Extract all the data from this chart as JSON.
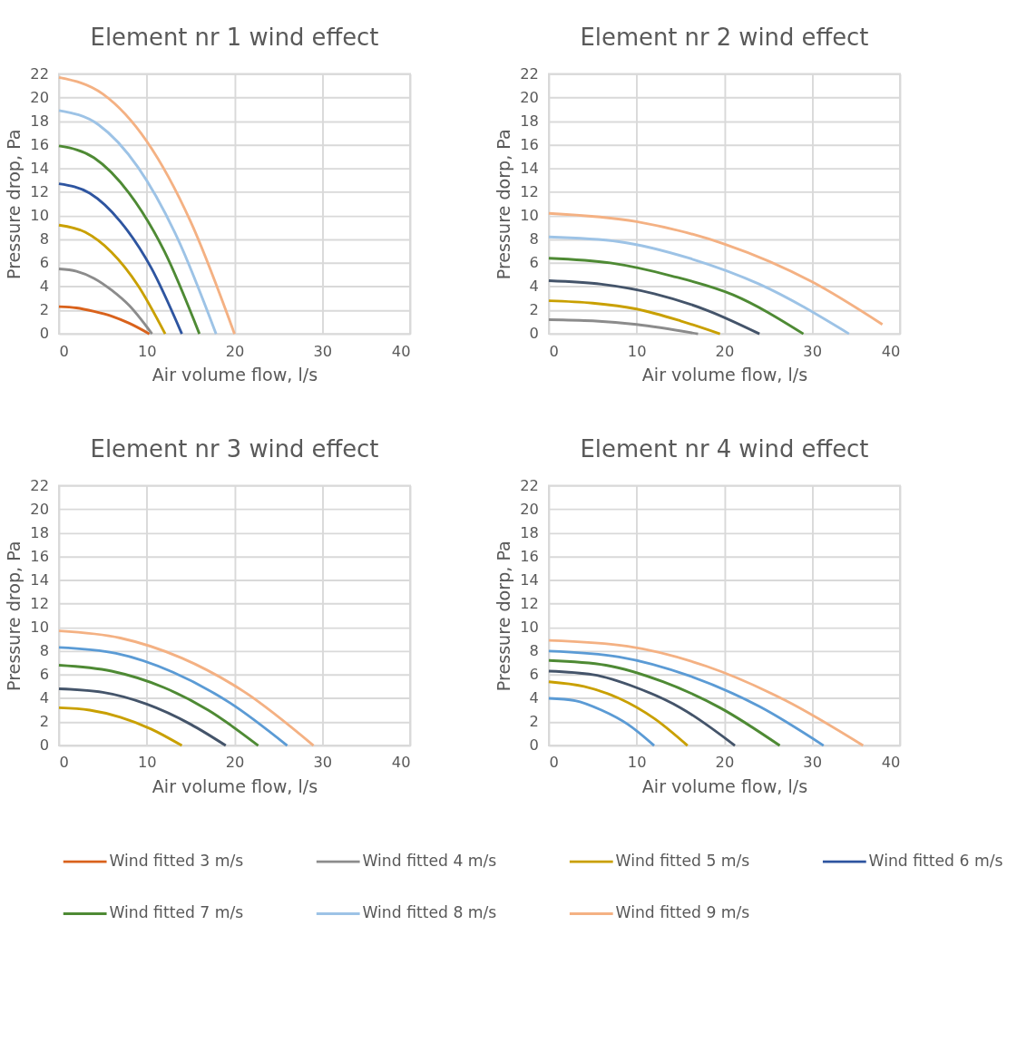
{
  "chart_data": [
    {
      "type": "line",
      "title": "Element nr 1 wind effect",
      "xlabel": "Air volume flow, l/s",
      "ylabel": "Pressure drop, Pa",
      "xlim": [
        0,
        40
      ],
      "xticks": [
        0,
        10,
        20,
        30,
        40
      ],
      "ylim": [
        0,
        22
      ],
      "yticks": [
        0,
        2,
        4,
        6,
        8,
        10,
        12,
        14,
        16,
        18,
        20,
        22
      ],
      "grid": true,
      "legend": "bottom",
      "series": [
        {
          "name": "Wind fitted 3 m/s",
          "color": "#d9621c",
          "x": [
            0,
            2,
            4,
            6,
            8,
            10.3
          ],
          "values": [
            2.3,
            2.2,
            1.9,
            1.5,
            0.9,
            0
          ]
        },
        {
          "name": "Wind fitted 4 m/s",
          "color": "#8c8c8c",
          "x": [
            0,
            2,
            4,
            6,
            8,
            10.6
          ],
          "values": [
            5.5,
            5.3,
            4.7,
            3.7,
            2.4,
            0
          ]
        },
        {
          "name": "Wind fitted 5 m/s",
          "color": "#c9a000",
          "x": [
            0,
            3,
            6,
            9,
            12.1
          ],
          "values": [
            9.2,
            8.6,
            6.9,
            4.1,
            0
          ]
        },
        {
          "name": "Wind fitted 6 m/s",
          "color": "#2e55a0",
          "x": [
            0,
            3.5,
            7,
            10.5,
            14
          ],
          "values": [
            12.7,
            11.9,
            9.5,
            5.6,
            0
          ]
        },
        {
          "name": "Wind fitted 7 m/s",
          "color": "#4e8a34",
          "x": [
            0,
            4,
            8,
            12,
            16
          ],
          "values": [
            15.9,
            14.9,
            11.9,
            7.0,
            0
          ]
        },
        {
          "name": "Wind fitted 8 m/s",
          "color": "#9dc3e6",
          "x": [
            0,
            4.5,
            9,
            13.5,
            17.9
          ],
          "values": [
            18.9,
            17.7,
            14.1,
            8.1,
            0
          ]
        },
        {
          "name": "Wind fitted 9 m/s",
          "color": "#f4b183",
          "x": [
            0,
            5,
            10,
            15,
            20
          ],
          "values": [
            21.7,
            20.3,
            16.3,
            9.5,
            0
          ]
        }
      ]
    },
    {
      "type": "line",
      "title": "Element nr 2 wind effect",
      "xlabel": "Air volume flow, l/s",
      "ylabel": "Pressure dorp, Pa",
      "xlim": [
        0,
        40
      ],
      "xticks": [
        0,
        10,
        20,
        30,
        40
      ],
      "ylim": [
        0,
        22
      ],
      "yticks": [
        0,
        2,
        4,
        6,
        8,
        10,
        12,
        14,
        16,
        18,
        20,
        22
      ],
      "grid": true,
      "series": [
        {
          "color": "#8c8c8c",
          "x": [
            0,
            5,
            10,
            17
          ],
          "values": [
            1.2,
            1.1,
            0.8,
            0
          ]
        },
        {
          "color": "#c9a000",
          "x": [
            0,
            5,
            10,
            15,
            19.5
          ],
          "values": [
            2.8,
            2.6,
            2.1,
            1.1,
            0
          ]
        },
        {
          "color": "#44546a",
          "x": [
            0,
            6,
            12,
            18,
            24
          ],
          "values": [
            4.5,
            4.2,
            3.4,
            2.0,
            0
          ]
        },
        {
          "color": "#4e8a34",
          "x": [
            0,
            7,
            14,
            21,
            29
          ],
          "values": [
            6.4,
            6.0,
            4.9,
            3.3,
            0
          ]
        },
        {
          "color": "#9dc3e6",
          "x": [
            0,
            8,
            16,
            24,
            34.2
          ],
          "values": [
            8.2,
            7.8,
            6.4,
            4.2,
            0
          ]
        },
        {
          "color": "#f4b183",
          "x": [
            0,
            10,
            20,
            30,
            38
          ],
          "values": [
            10.2,
            9.5,
            7.6,
            4.4,
            0.8
          ]
        }
      ]
    },
    {
      "type": "line",
      "title": "Element nr 3 wind effect",
      "xlabel": "Air volume flow, l/s",
      "ylabel": "Pressure drop, Pa",
      "xlim": [
        0,
        40
      ],
      "xticks": [
        0,
        10,
        20,
        30,
        40
      ],
      "ylim": [
        0,
        22
      ],
      "yticks": [
        0,
        2,
        4,
        6,
        8,
        10,
        12,
        14,
        16,
        18,
        20,
        22
      ],
      "grid": true,
      "series": [
        {
          "color": "#c9a000",
          "x": [
            0,
            3.5,
            7,
            10.5,
            14
          ],
          "values": [
            3.2,
            3.0,
            2.4,
            1.4,
            0
          ]
        },
        {
          "color": "#44546a",
          "x": [
            0,
            5,
            10,
            15,
            19
          ],
          "values": [
            4.8,
            4.5,
            3.5,
            1.8,
            0
          ]
        },
        {
          "color": "#4e8a34",
          "x": [
            0,
            6,
            12,
            17,
            22.7
          ],
          "values": [
            6.8,
            6.3,
            4.9,
            3.0,
            0
          ]
        },
        {
          "color": "#5b9bd5",
          "x": [
            0,
            6.5,
            13,
            19.5,
            26
          ],
          "values": [
            8.3,
            7.8,
            6.2,
            3.6,
            0
          ]
        },
        {
          "color": "#f4b183",
          "x": [
            0,
            7,
            14,
            21,
            29
          ],
          "values": [
            9.7,
            9.1,
            7.4,
            4.6,
            0
          ]
        }
      ]
    },
    {
      "type": "line",
      "title": "Element nr 4 wind effect",
      "xlabel": "Air volume flow, l/s",
      "ylabel": "Pressure dorp, Pa",
      "xlim": [
        0,
        40
      ],
      "xticks": [
        0,
        10,
        20,
        30,
        40
      ],
      "ylim": [
        0,
        22
      ],
      "yticks": [
        0,
        2,
        4,
        6,
        8,
        10,
        12,
        14,
        16,
        18,
        20,
        22
      ],
      "grid": true,
      "series": [
        {
          "color": "#5b9bd5",
          "x": [
            0,
            3,
            6,
            9,
            12
          ],
          "values": [
            4.0,
            3.8,
            3.0,
            1.8,
            0
          ]
        },
        {
          "color": "#c9a000",
          "x": [
            0,
            4,
            8,
            12,
            15.8
          ],
          "values": [
            5.4,
            5.0,
            4.0,
            2.3,
            0
          ]
        },
        {
          "color": "#44546a",
          "x": [
            0,
            5,
            10,
            15,
            21.2
          ],
          "values": [
            6.3,
            6.0,
            4.9,
            3.2,
            0
          ]
        },
        {
          "color": "#4e8a34",
          "x": [
            0,
            6.5,
            13,
            19.5,
            26.3
          ],
          "values": [
            7.2,
            6.8,
            5.4,
            3.2,
            0
          ]
        },
        {
          "color": "#5b9bd5",
          "x": [
            0,
            8,
            16,
            24,
            31.3
          ],
          "values": [
            8.0,
            7.5,
            5.9,
            3.3,
            0
          ]
        },
        {
          "color": "#f4b183",
          "x": [
            0,
            9,
            18,
            27,
            35.8
          ],
          "values": [
            8.9,
            8.4,
            6.7,
            3.8,
            0
          ]
        }
      ]
    }
  ]
}
